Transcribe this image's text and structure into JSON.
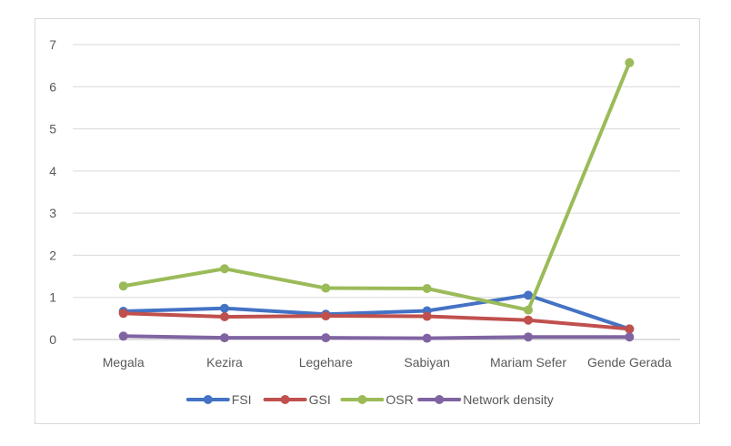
{
  "chart_data": {
    "type": "line",
    "title": "",
    "xlabel": "",
    "ylabel": "",
    "categories": [
      "Megala",
      "Kezira",
      "Legehare",
      "Sabiyan",
      "Mariam Sefer",
      "Gende Gerada"
    ],
    "ylim": [
      0,
      7
    ],
    "yticks": [
      "0",
      "1",
      "2",
      "3",
      "4",
      "5",
      "6",
      "7"
    ],
    "grid": "horizontal",
    "legend_position": "bottom",
    "series": [
      {
        "name": "FSI",
        "color": "#4472c4",
        "values": [
          0.67,
          0.74,
          0.6,
          0.68,
          1.05,
          0.25
        ]
      },
      {
        "name": "GSI",
        "color": "#c0504d",
        "values": [
          0.62,
          0.54,
          0.56,
          0.55,
          0.46,
          0.25
        ]
      },
      {
        "name": "OSR",
        "color": "#9bbb59",
        "values": [
          1.27,
          1.68,
          1.22,
          1.21,
          0.7,
          6.57
        ]
      },
      {
        "name": "Network density",
        "color": "#8064a2",
        "values": [
          0.08,
          0.04,
          0.04,
          0.03,
          0.06,
          0.06
        ]
      }
    ]
  }
}
